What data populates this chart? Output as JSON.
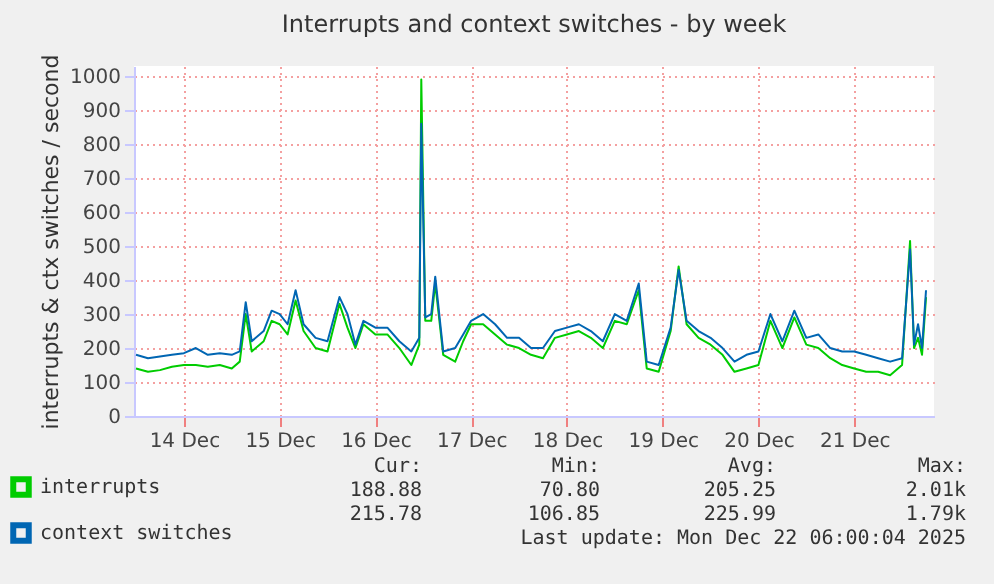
{
  "chart_data": {
    "type": "line",
    "title": "Interrupts and context switches - by week",
    "ylabel": "interrupts & ctx switches / second",
    "x": [
      "2025-12-14T00:00",
      "2025-12-14T03:00",
      "2025-12-14T06:00",
      "2025-12-14T09:00",
      "2025-12-14T12:00",
      "2025-12-14T15:00",
      "2025-12-14T18:00",
      "2025-12-14T21:00",
      "2025-12-15T00:00",
      "2025-12-15T02:00",
      "2025-12-15T03:30",
      "2025-12-15T05:00",
      "2025-12-15T08:00",
      "2025-12-15T10:00",
      "2025-12-15T12:00",
      "2025-12-15T14:00",
      "2025-12-15T16:00",
      "2025-12-15T18:00",
      "2025-12-15T21:00",
      "2025-12-16T00:00",
      "2025-12-16T03:00",
      "2025-12-16T05:00",
      "2025-12-16T07:00",
      "2025-12-16T09:00",
      "2025-12-16T12:00",
      "2025-12-16T15:00",
      "2025-12-16T18:00",
      "2025-12-16T21:00",
      "2025-12-16T23:00",
      "2025-12-16T23:30",
      "2025-12-17T00:30",
      "2025-12-17T02:00",
      "2025-12-17T03:00",
      "2025-12-17T05:00",
      "2025-12-17T08:00",
      "2025-12-17T10:00",
      "2025-12-17T12:00",
      "2025-12-17T15:00",
      "2025-12-17T18:00",
      "2025-12-17T21:00",
      "2025-12-18T00:00",
      "2025-12-18T03:00",
      "2025-12-18T06:00",
      "2025-12-18T09:00",
      "2025-12-18T12:00",
      "2025-12-18T15:00",
      "2025-12-18T18:00",
      "2025-12-18T21:00",
      "2025-12-19T00:00",
      "2025-12-19T03:00",
      "2025-12-19T06:00",
      "2025-12-19T08:00",
      "2025-12-19T11:00",
      "2025-12-19T14:00",
      "2025-12-19T16:00",
      "2025-12-19T18:00",
      "2025-12-19T21:00",
      "2025-12-20T00:00",
      "2025-12-20T03:00",
      "2025-12-20T06:00",
      "2025-12-20T09:00",
      "2025-12-20T12:00",
      "2025-12-20T15:00",
      "2025-12-20T18:00",
      "2025-12-20T21:00",
      "2025-12-21T00:00",
      "2025-12-21T03:00",
      "2025-12-21T06:00",
      "2025-12-21T09:00",
      "2025-12-21T12:00",
      "2025-12-21T15:00",
      "2025-12-21T18:00",
      "2025-12-21T21:00",
      "2025-12-22T00:00",
      "2025-12-22T02:00",
      "2025-12-22T03:00",
      "2025-12-22T04:00",
      "2025-12-22T05:00",
      "2025-12-22T06:00"
    ],
    "series": [
      {
        "name": "interrupts",
        "color": "#00cc00",
        "values": [
          140,
          130,
          135,
          145,
          150,
          150,
          145,
          150,
          140,
          160,
          300,
          190,
          220,
          280,
          270,
          240,
          340,
          250,
          200,
          190,
          330,
          260,
          200,
          270,
          240,
          240,
          200,
          150,
          210,
          990,
          280,
          280,
          390,
          180,
          160,
          220,
          270,
          270,
          240,
          210,
          200,
          180,
          170,
          230,
          240,
          250,
          230,
          200,
          280,
          270,
          370,
          140,
          130,
          250,
          440,
          270,
          230,
          210,
          180,
          130,
          140,
          150,
          280,
          200,
          290,
          210,
          200,
          170,
          150,
          140,
          130,
          130,
          120,
          150,
          515,
          200,
          230,
          180,
          350
        ]
      },
      {
        "name": "context switches",
        "color": "#0066b3",
        "values": [
          180,
          170,
          175,
          180,
          185,
          200,
          180,
          185,
          180,
          190,
          335,
          220,
          250,
          310,
          300,
          270,
          370,
          270,
          230,
          220,
          350,
          300,
          210,
          280,
          260,
          260,
          220,
          190,
          230,
          860,
          290,
          300,
          410,
          190,
          200,
          240,
          280,
          300,
          270,
          230,
          230,
          200,
          200,
          250,
          260,
          270,
          250,
          220,
          300,
          280,
          390,
          160,
          150,
          260,
          430,
          280,
          250,
          230,
          200,
          160,
          180,
          190,
          300,
          220,
          310,
          230,
          240,
          200,
          190,
          190,
          180,
          170,
          160,
          170,
          490,
          210,
          270,
          200,
          370
        ]
      }
    ],
    "xlim": [
      "2025-12-13T23:30",
      "2025-12-22T08:00"
    ],
    "xticks": [
      {
        "value": "2025-12-14T12:00",
        "label": "14 Dec"
      },
      {
        "value": "2025-12-15T12:00",
        "label": "15 Dec"
      },
      {
        "value": "2025-12-16T12:00",
        "label": "16 Dec"
      },
      {
        "value": "2025-12-17T12:00",
        "label": "17 Dec"
      },
      {
        "value": "2025-12-18T12:00",
        "label": "18 Dec"
      },
      {
        "value": "2025-12-19T12:00",
        "label": "19 Dec"
      },
      {
        "value": "2025-12-20T12:00",
        "label": "20 Dec"
      },
      {
        "value": "2025-12-21T12:00",
        "label": "21 Dec"
      }
    ],
    "ylim": [
      0,
      1030
    ],
    "yticks": [
      0,
      100,
      200,
      300,
      400,
      500,
      600,
      700,
      800,
      900,
      1000
    ],
    "grid": true,
    "legend": "bottom",
    "marker": "none",
    "line_style": "solid",
    "annotations": [
      "Cur:",
      "Min:",
      "Avg:",
      "Max:",
      "188.88",
      "70.80",
      "205.25",
      "2.01k",
      "215.78",
      "106.85",
      "225.99",
      "1.79k",
      "Last update: Mon Dec 22 06:00:04 2025"
    ]
  }
}
